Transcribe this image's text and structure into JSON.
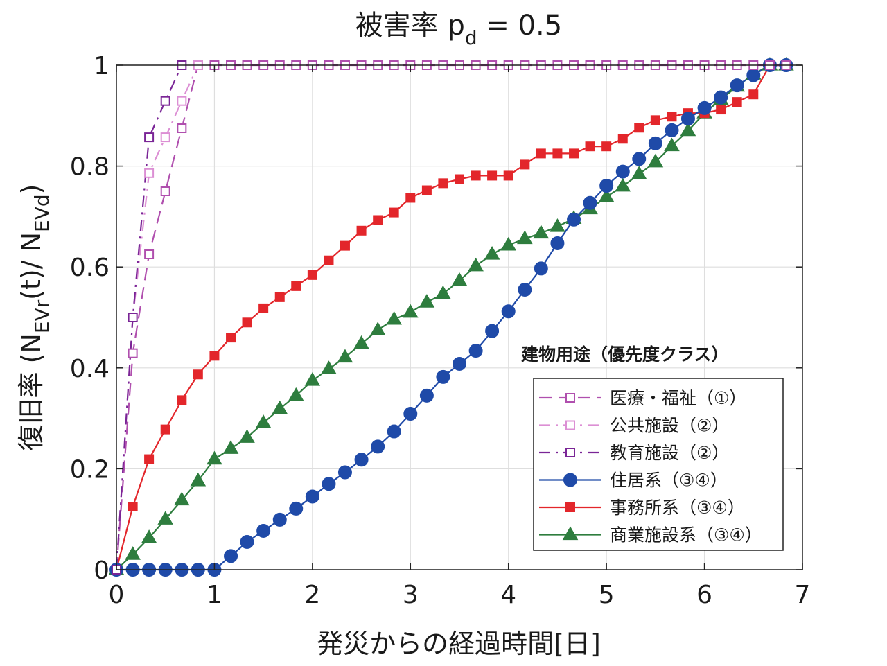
{
  "chart_data": {
    "type": "line",
    "title": {
      "main": "被害率 p",
      "sub": "d",
      "suffix": " =  0.5"
    },
    "xlabel": "発災からの経過時間[日]",
    "ylabel": {
      "prefix": "復旧率 (N",
      "sub1": "EVr",
      "middle": "(t)/ N",
      "sub2": "EVd",
      "suffix": ")"
    },
    "xlim": [
      0,
      7
    ],
    "ylim": [
      0,
      1
    ],
    "xticks": [
      0,
      1,
      2,
      3,
      4,
      5,
      6,
      7
    ],
    "xtick_labels": [
      "0",
      "1",
      "2",
      "3",
      "4",
      "5",
      "6",
      "7"
    ],
    "yticks": [
      0,
      0.2,
      0.4,
      0.6,
      0.8,
      1
    ],
    "ytick_labels": [
      "0",
      "0.2",
      "0.4",
      "0.6",
      "0.8",
      "1"
    ],
    "grid": true,
    "legend": {
      "title": "建物用途（優先度クラス）",
      "placement": "lower-right"
    },
    "series": [
      {
        "name": "医療・福祉（①）",
        "color": "#b04fae",
        "dash": "dash",
        "marker": "square-open",
        "x": [
          0,
          0.167,
          0.333,
          0.5,
          0.667,
          0.833,
          1,
          1.167,
          1.333,
          1.5,
          1.667,
          1.833,
          2,
          2.167,
          2.333,
          2.5,
          2.667,
          2.833,
          3,
          3.167,
          3.333,
          3.5,
          3.667,
          3.833,
          4,
          4.167,
          4.333,
          4.5,
          4.667,
          4.833,
          5,
          5.167,
          5.333,
          5.5,
          5.667,
          5.833,
          6,
          6.167,
          6.333,
          6.5,
          6.667,
          6.833
        ],
        "y": [
          0,
          0.429,
          0.625,
          0.75,
          0.875,
          1,
          1,
          1,
          1,
          1,
          1,
          1,
          1,
          1,
          1,
          1,
          1,
          1,
          1,
          1,
          1,
          1,
          1,
          1,
          1,
          1,
          1,
          1,
          1,
          1,
          1,
          1,
          1,
          1,
          1,
          1,
          1,
          1,
          1,
          1,
          1,
          1
        ]
      },
      {
        "name": "公共施設（②）",
        "color": "#dc8fd4",
        "dash": "dashdot",
        "marker": "square-open",
        "x": [
          0,
          0.167,
          0.333,
          0.5,
          0.667,
          0.833
        ],
        "y": [
          0,
          0.5,
          0.786,
          0.857,
          0.929,
          1
        ]
      },
      {
        "name": "教育施設（②）",
        "color": "#7a2596",
        "dash": "dashdot",
        "marker": "square-open",
        "x": [
          0,
          0.167,
          0.333,
          0.5,
          0.667
        ],
        "y": [
          0,
          0.5,
          0.857,
          0.929,
          1
        ]
      },
      {
        "name": "住居系（③④）",
        "color": "#1f4aa8",
        "dash": "solid",
        "marker": "circle",
        "x": [
          0,
          0.167,
          0.333,
          0.5,
          0.667,
          0.833,
          1,
          1.167,
          1.333,
          1.5,
          1.667,
          1.833,
          2,
          2.167,
          2.333,
          2.5,
          2.667,
          2.833,
          3,
          3.167,
          3.333,
          3.5,
          3.667,
          3.833,
          4,
          4.167,
          4.333,
          4.5,
          4.667,
          4.833,
          5,
          5.167,
          5.333,
          5.5,
          5.667,
          5.833,
          6,
          6.167,
          6.333,
          6.5,
          6.667,
          6.833
        ],
        "y": [
          0,
          0,
          0,
          0,
          0,
          0,
          0,
          0.027,
          0.055,
          0.077,
          0.099,
          0.121,
          0.145,
          0.17,
          0.193,
          0.218,
          0.244,
          0.274,
          0.309,
          0.345,
          0.382,
          0.408,
          0.434,
          0.473,
          0.512,
          0.555,
          0.597,
          0.647,
          0.694,
          0.727,
          0.761,
          0.789,
          0.814,
          0.845,
          0.871,
          0.894,
          0.915,
          0.936,
          0.96,
          0.98,
          1,
          1
        ]
      },
      {
        "name": "事務所系（③④）",
        "color": "#e3262b",
        "dash": "solid",
        "marker": "square-filled",
        "x": [
          0,
          0.167,
          0.333,
          0.5,
          0.667,
          0.833,
          1,
          1.167,
          1.333,
          1.5,
          1.667,
          1.833,
          2,
          2.167,
          2.333,
          2.5,
          2.667,
          2.833,
          3,
          3.167,
          3.333,
          3.5,
          3.667,
          3.833,
          4,
          4.167,
          4.333,
          4.5,
          4.667,
          4.833,
          5,
          5.167,
          5.333,
          5.5,
          5.667,
          5.833,
          6,
          6.167,
          6.333,
          6.5,
          6.667,
          6.833
        ],
        "y": [
          0,
          0.125,
          0.219,
          0.278,
          0.336,
          0.387,
          0.424,
          0.46,
          0.49,
          0.518,
          0.54,
          0.562,
          0.584,
          0.613,
          0.642,
          0.672,
          0.693,
          0.708,
          0.737,
          0.752,
          0.766,
          0.774,
          0.781,
          0.781,
          0.781,
          0.803,
          0.825,
          0.825,
          0.825,
          0.839,
          0.839,
          0.854,
          0.876,
          0.891,
          0.898,
          0.905,
          0.905,
          0.912,
          0.927,
          0.942,
          1,
          1
        ]
      },
      {
        "name": "商業施設系（③④）",
        "color": "#2e7d3e",
        "dash": "solid",
        "marker": "triangle",
        "x": [
          0,
          0.167,
          0.333,
          0.5,
          0.667,
          0.833,
          1,
          1.167,
          1.333,
          1.5,
          1.667,
          1.833,
          2,
          2.167,
          2.333,
          2.5,
          2.667,
          2.833,
          3,
          3.167,
          3.333,
          3.5,
          3.667,
          3.833,
          4,
          4.167,
          4.333,
          4.5,
          4.667,
          4.833,
          5,
          5.167,
          5.333,
          5.5,
          5.667,
          5.833,
          6,
          6.167,
          6.333,
          6.5,
          6.667,
          6.833
        ],
        "y": [
          0,
          0.03,
          0.063,
          0.1,
          0.138,
          0.176,
          0.219,
          0.24,
          0.262,
          0.291,
          0.319,
          0.345,
          0.375,
          0.398,
          0.421,
          0.448,
          0.475,
          0.496,
          0.51,
          0.53,
          0.547,
          0.573,
          0.602,
          0.625,
          0.643,
          0.656,
          0.667,
          0.68,
          0.696,
          0.715,
          0.739,
          0.76,
          0.784,
          0.808,
          0.84,
          0.87,
          0.905,
          0.932,
          0.958,
          0.982,
          1,
          1
        ]
      }
    ]
  }
}
